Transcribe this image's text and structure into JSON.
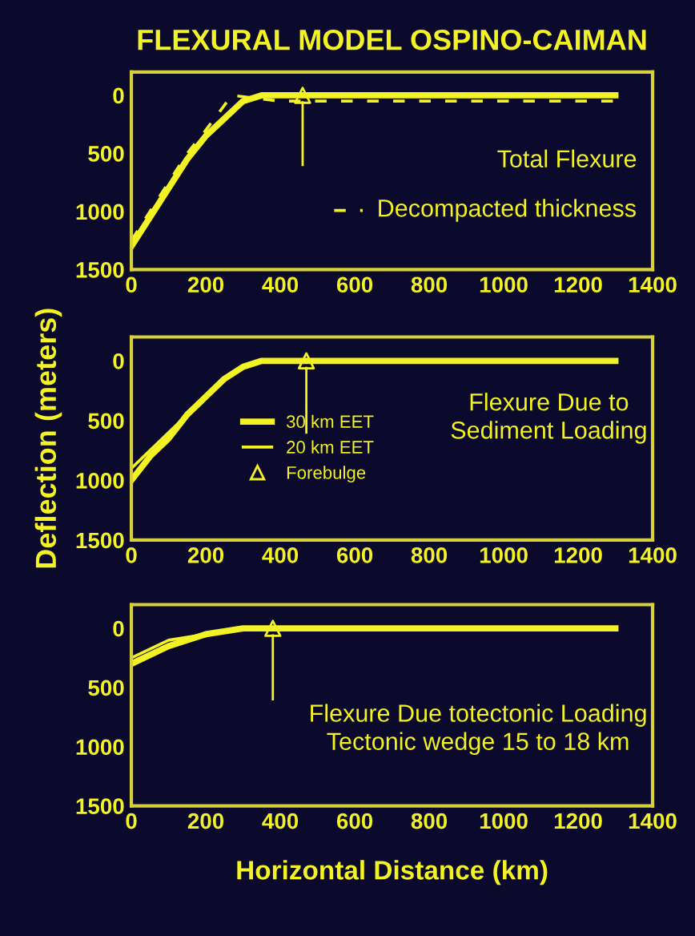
{
  "chart_data": [
    {
      "type": "line",
      "title": "FLEXURAL MODEL OSPINO-CAIMAN",
      "annotations": [
        "Total Flexure"
      ],
      "legend": "right",
      "xlim": [
        0,
        1400
      ],
      "xticks": [
        0,
        200,
        400,
        600,
        800,
        1000,
        1200,
        1400
      ],
      "ylim": [
        1500,
        -200
      ],
      "yticks": [
        0,
        500,
        1000,
        1500
      ],
      "grid": false,
      "series": [
        {
          "color": "#f2f224",
          "line_style": "solid",
          "x": [
            0,
            50,
            100,
            150,
            200,
            250,
            300,
            350,
            400,
            500,
            600,
            800,
            1000,
            1300
          ],
          "values": [
            1300,
            1050,
            800,
            550,
            350,
            200,
            50,
            0,
            0,
            0,
            0,
            0,
            0,
            0
          ]
        },
        {
          "name": "Decompacted thickness",
          "color": "#f2f224",
          "line_style": "dashed",
          "x": [
            0,
            100,
            150,
            200,
            270,
            400,
            600,
            800,
            1000,
            1300
          ],
          "values": [
            1250,
            750,
            500,
            300,
            0,
            50,
            50,
            50,
            50,
            50
          ]
        },
        {
          "type": "scatter",
          "color": "#f2f224",
          "x": [
            460
          ],
          "values": [
            0
          ]
        }
      ]
    },
    {
      "type": "line",
      "annotations": [
        "Flexure Due to\nSediment Loading"
      ],
      "ylabel": "Deflection (meters)",
      "legend": "center",
      "xlim": [
        0,
        1400
      ],
      "xticks": [
        0,
        200,
        400,
        600,
        800,
        1000,
        1200,
        1400
      ],
      "ylim": [
        1500,
        -200
      ],
      "yticks": [
        0,
        500,
        1000,
        1500
      ],
      "grid": false,
      "series": [
        {
          "name": "30 km EET",
          "color": "#f2f224",
          "line_style": "solid",
          "x": [
            0,
            50,
            100,
            150,
            200,
            250,
            300,
            350,
            400,
            470,
            600,
            800,
            1000,
            1300
          ],
          "values": [
            1000,
            800,
            650,
            450,
            300,
            150,
            50,
            0,
            0,
            0,
            0,
            0,
            0,
            0
          ]
        },
        {
          "name": "20 km EET",
          "color": "#f2f224",
          "line_style": "solid",
          "x": [
            0,
            50,
            100,
            150,
            200,
            250,
            300,
            350,
            400,
            470,
            600,
            800,
            1000,
            1300
          ],
          "values": [
            900,
            750,
            600,
            450,
            300,
            150,
            50,
            0,
            0,
            0,
            0,
            0,
            0,
            0
          ]
        },
        {
          "type": "scatter",
          "name": "Forebulge",
          "color": "#f2f224",
          "x": [
            470
          ],
          "values": [
            0
          ]
        }
      ]
    },
    {
      "type": "line",
      "annotations": [
        "Flexure Due totectonic Loading\nTectonic wedge 15 to 18 km"
      ],
      "xlabel": "Horizontal Distance (km)",
      "xlim": [
        0,
        1400
      ],
      "xticks": [
        0,
        200,
        400,
        600,
        800,
        1000,
        1200,
        1400
      ],
      "ylim": [
        1500,
        -200
      ],
      "yticks": [
        0,
        500,
        1000,
        1500
      ],
      "grid": false,
      "series": [
        {
          "color": "#f2f224",
          "line_style": "solid",
          "x": [
            0,
            100,
            200,
            300,
            380,
            500,
            700,
            1000,
            1300
          ],
          "values": [
            300,
            150,
            50,
            0,
            0,
            0,
            0,
            0,
            0
          ]
        },
        {
          "color": "#f2f224",
          "line_style": "solid",
          "x": [
            0,
            100,
            200,
            300,
            380,
            500,
            700,
            1000,
            1300
          ],
          "values": [
            250,
            100,
            50,
            0,
            0,
            0,
            0,
            0,
            0
          ]
        },
        {
          "type": "scatter",
          "color": "#f2f224",
          "x": [
            380
          ],
          "values": [
            0
          ]
        }
      ]
    }
  ]
}
